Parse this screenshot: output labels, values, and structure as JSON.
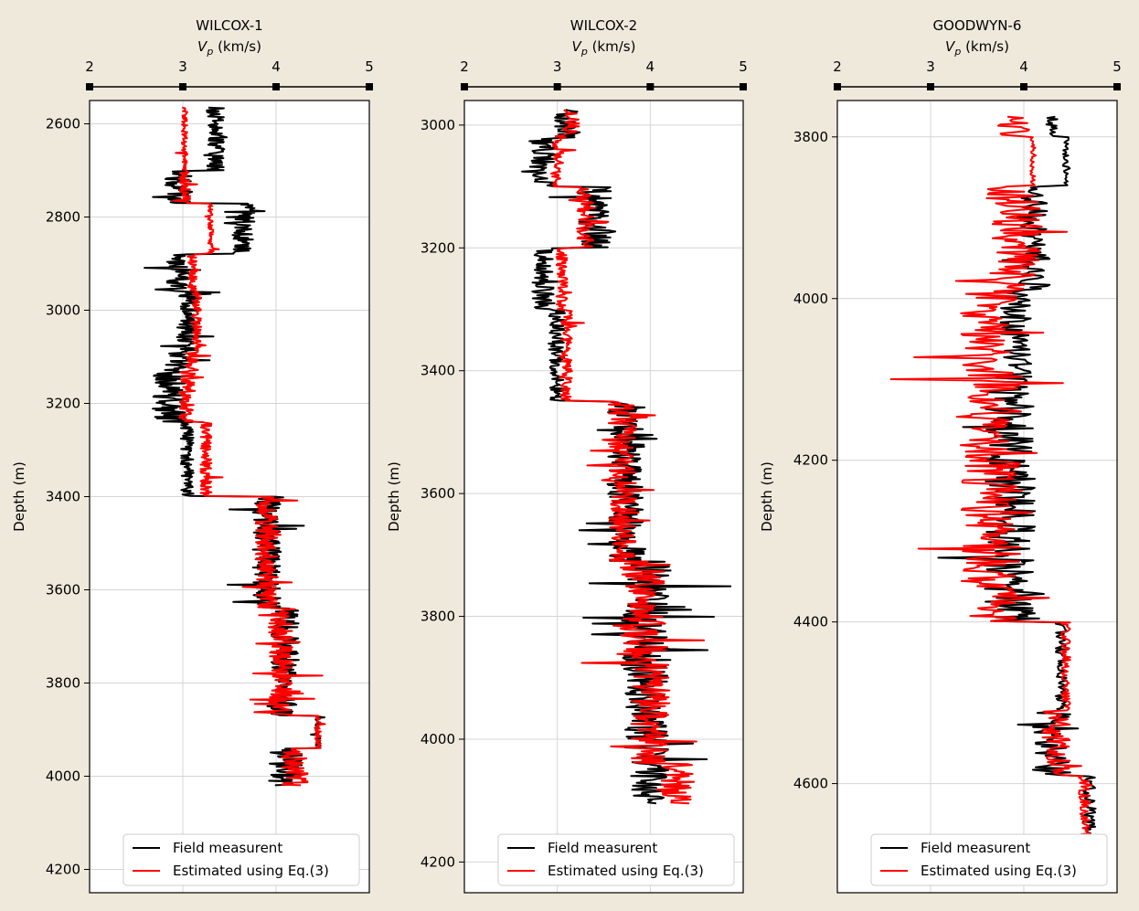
{
  "colors": {
    "background": "#efe9dc",
    "plot_background": "#ffffff",
    "field": "#000000",
    "estimated": "#ff0000",
    "grid": "#d4d4d4"
  },
  "chart_data": [
    {
      "type": "line",
      "title": "WILCOX-1",
      "xlabel_main": "V",
      "xlabel_sub": "p",
      "xlabel_unit": " (km/s)",
      "ylabel": "Depth (m)",
      "xlim": [
        2,
        5
      ],
      "ylim": [
        2550,
        4250
      ],
      "xticks": [
        2,
        3,
        4,
        5
      ],
      "yticks": [
        2600,
        2800,
        3000,
        3200,
        3400,
        3600,
        3800,
        4000,
        4200
      ],
      "depth_range": [
        2565,
        4020
      ],
      "segments": [
        {
          "from": 2565,
          "field": [
            3.35,
            0.16
          ],
          "est": [
            3.02,
            0.05
          ]
        },
        {
          "from": 2700,
          "field": [
            2.95,
            0.25
          ],
          "est": [
            3.02,
            0.1
          ]
        },
        {
          "from": 2770,
          "field": [
            3.65,
            0.2
          ],
          "est": [
            3.3,
            0.05
          ]
        },
        {
          "from": 2880,
          "field": [
            2.95,
            0.2
          ],
          "est": [
            3.1,
            0.08
          ]
        },
        {
          "from": 2960,
          "field": [
            3.05,
            0.2
          ],
          "est": [
            3.15,
            0.08
          ]
        },
        {
          "from": 3090,
          "field": [
            2.95,
            0.25
          ],
          "est": [
            3.1,
            0.12
          ]
        },
        {
          "from": 3130,
          "field": [
            2.85,
            0.3
          ],
          "est": [
            3.05,
            0.15
          ]
        },
        {
          "from": 3240,
          "field": [
            3.05,
            0.12
          ],
          "est": [
            3.25,
            0.1
          ]
        },
        {
          "from": 3400,
          "field": [
            3.9,
            0.25
          ],
          "est": [
            3.9,
            0.2
          ]
        },
        {
          "from": 3640,
          "field": [
            4.1,
            0.25
          ],
          "est": [
            4.05,
            0.22
          ]
        },
        {
          "from": 3870,
          "field": [
            4.45,
            0.05
          ],
          "est": [
            4.45,
            0.05
          ]
        },
        {
          "from": 3940,
          "field": [
            4.1,
            0.3
          ],
          "est": [
            4.2,
            0.25
          ]
        }
      ],
      "legend": [
        "Field measurent",
        "Estimated using Eq.(3)"
      ]
    },
    {
      "type": "line",
      "title": "WILCOX-2",
      "xlabel_main": "V",
      "xlabel_sub": "p",
      "xlabel_unit": " (km/s)",
      "ylabel": "Depth (m)",
      "xlim": [
        2,
        5
      ],
      "ylim": [
        2960,
        4250
      ],
      "xticks": [
        2,
        3,
        4,
        5
      ],
      "yticks": [
        3000,
        3200,
        3400,
        3600,
        3800,
        4000,
        4200
      ],
      "depth_range": [
        2975,
        4105
      ],
      "segments": [
        {
          "from": 2975,
          "field": [
            3.1,
            0.25
          ],
          "est": [
            3.15,
            0.15
          ]
        },
        {
          "from": 3020,
          "field": [
            2.85,
            0.25
          ],
          "est": [
            3.0,
            0.12
          ]
        },
        {
          "from": 3100,
          "field": [
            3.4,
            0.3
          ],
          "est": [
            3.3,
            0.15
          ]
        },
        {
          "from": 3200,
          "field": [
            2.85,
            0.2
          ],
          "est": [
            3.05,
            0.1
          ]
        },
        {
          "from": 3300,
          "field": [
            3.0,
            0.15
          ],
          "est": [
            3.1,
            0.1
          ]
        },
        {
          "from": 3450,
          "field": [
            3.75,
            0.35
          ],
          "est": [
            3.7,
            0.25
          ]
        },
        {
          "from": 3710,
          "field": [
            3.95,
            0.45
          ],
          "est": [
            3.95,
            0.45
          ]
        },
        {
          "from": 3880,
          "field": [
            3.95,
            0.4
          ],
          "est": [
            4.0,
            0.35
          ]
        },
        {
          "from": 4040,
          "field": [
            4.0,
            0.35
          ],
          "est": [
            4.3,
            0.3
          ]
        }
      ],
      "legend": [
        "Field measurent",
        "Estimated using Eq.(3)"
      ]
    },
    {
      "type": "line",
      "title": "GOODWYN-6",
      "xlabel_main": "V",
      "xlabel_sub": "p",
      "xlabel_unit": " (km/s)",
      "ylabel": "Depth (m)",
      "xlim": [
        2,
        5
      ],
      "ylim": [
        3755,
        4735
      ],
      "xticks": [
        2,
        3,
        4,
        5
      ],
      "yticks": [
        3800,
        4000,
        4200,
        4400,
        4600
      ],
      "depth_range": [
        3775,
        4665
      ],
      "segments": [
        {
          "from": 3775,
          "field": [
            4.3,
            0.1
          ],
          "est": [
            3.9,
            0.3
          ]
        },
        {
          "from": 3800,
          "field": [
            4.45,
            0.05
          ],
          "est": [
            4.1,
            0.05
          ]
        },
        {
          "from": 3860,
          "field": [
            4.1,
            0.3
          ],
          "est": [
            3.9,
            0.5
          ]
        },
        {
          "from": 3990,
          "field": [
            3.9,
            0.3
          ],
          "est": [
            3.6,
            0.55
          ]
        },
        {
          "from": 4090,
          "field": [
            3.85,
            0.45
          ],
          "est": [
            3.65,
            0.55
          ]
        },
        {
          "from": 4400,
          "field": [
            4.4,
            0.1
          ],
          "est": [
            4.45,
            0.08
          ]
        },
        {
          "from": 4510,
          "field": [
            4.3,
            0.35
          ],
          "est": [
            4.35,
            0.25
          ]
        },
        {
          "from": 4590,
          "field": [
            4.7,
            0.12
          ],
          "est": [
            4.65,
            0.1
          ]
        }
      ],
      "legend": [
        "Field measurent",
        "Estimated using Eq.(3)"
      ]
    }
  ]
}
